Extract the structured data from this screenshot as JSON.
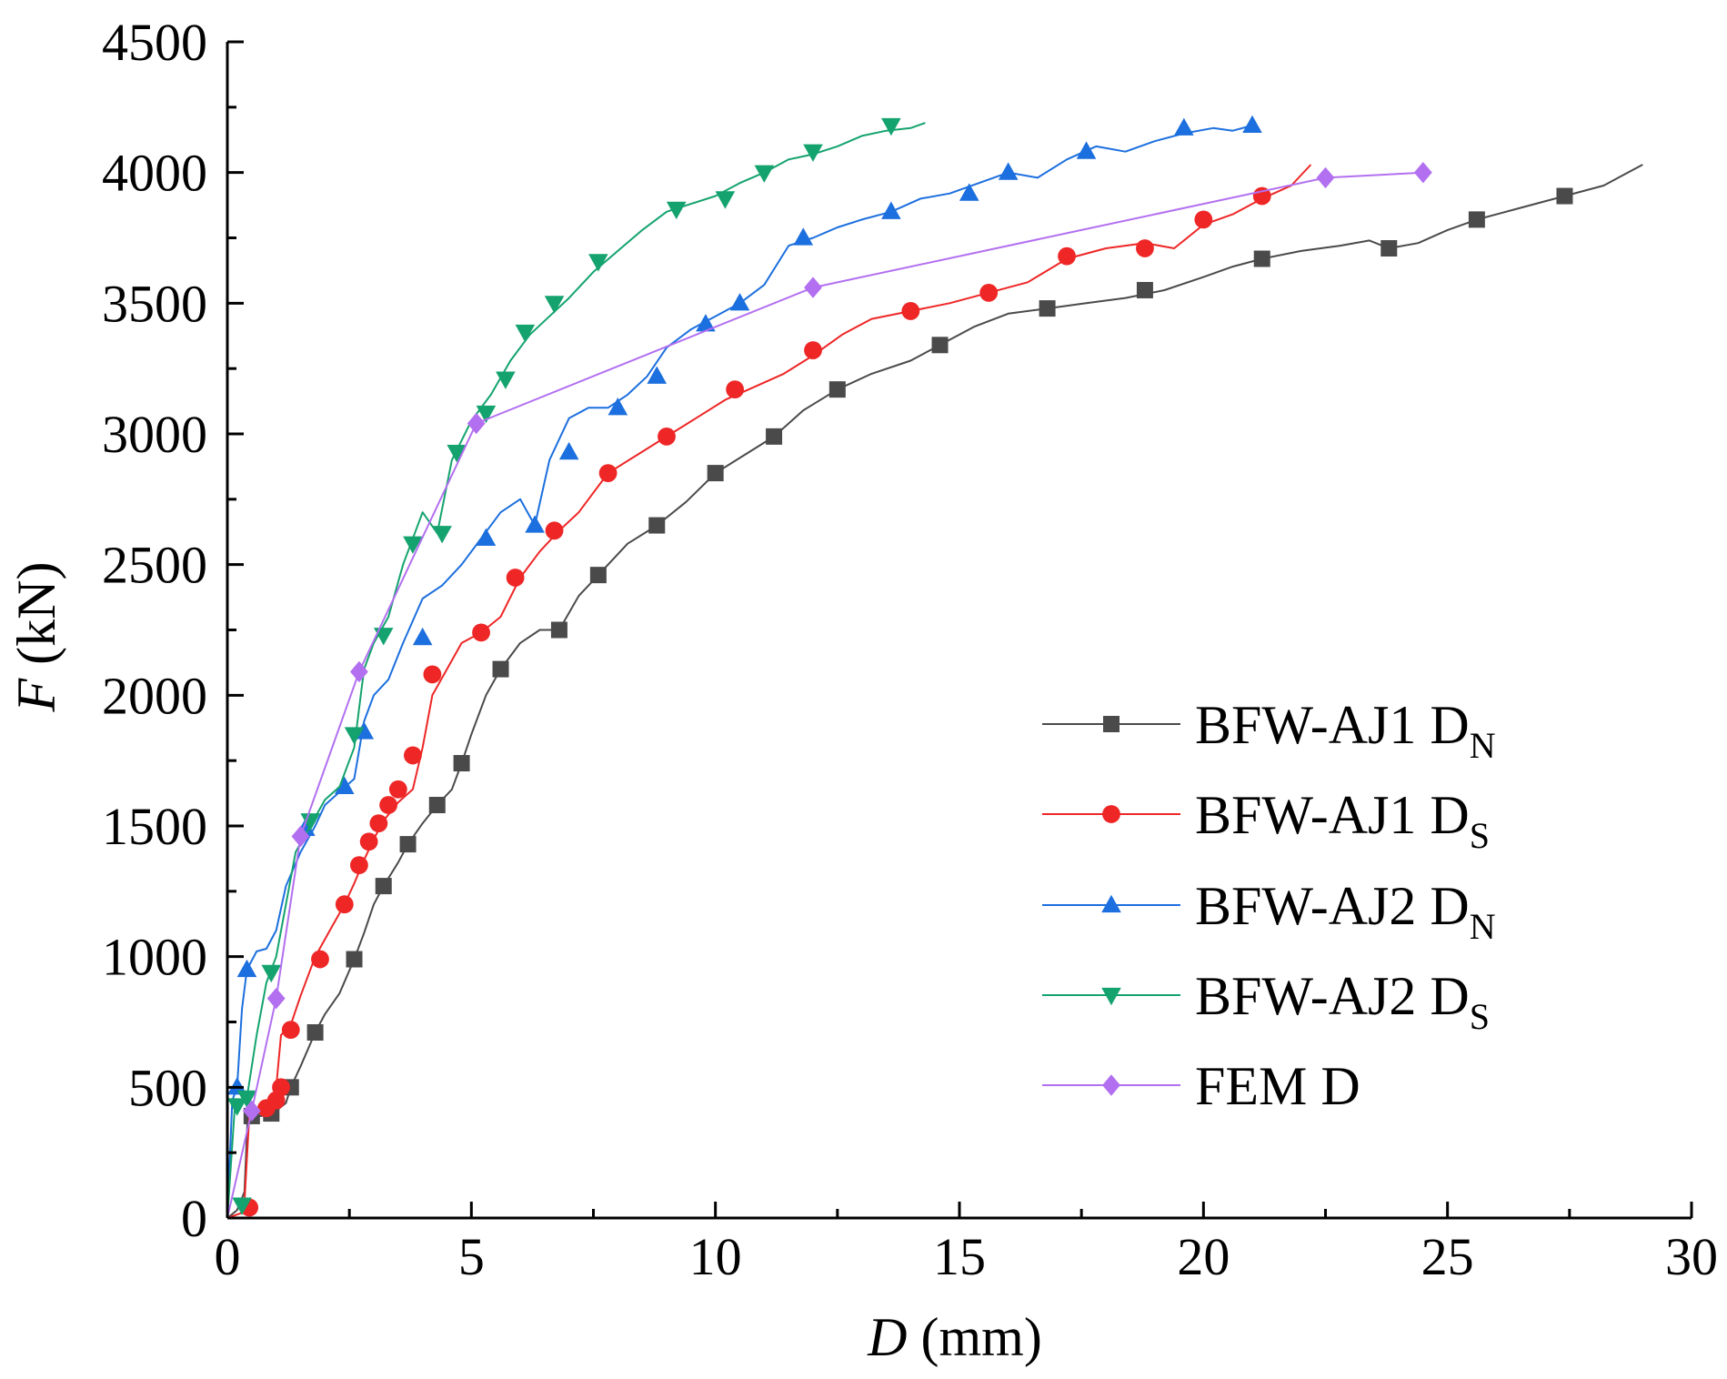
{
  "chart_data": {
    "type": "line",
    "title": "",
    "xlabel": {
      "symbol": "D",
      "unit": " (mm)"
    },
    "ylabel": {
      "symbol": "F",
      "unit": " (kN)"
    },
    "xlim": [
      0,
      30
    ],
    "ylim": [
      0,
      4500
    ],
    "xticks": [
      0,
      5,
      10,
      15,
      20,
      25,
      30
    ],
    "yticks": [
      0,
      500,
      1000,
      1500,
      2000,
      2500,
      3000,
      3500,
      4000,
      4500
    ],
    "x_tick_labels": [
      "0",
      "5",
      "10",
      "15",
      "20",
      "25",
      "30"
    ],
    "y_tick_labels": [
      "0",
      "500",
      "1000",
      "1500",
      "2000",
      "2500",
      "3000",
      "3500",
      "4000",
      "4500"
    ],
    "grid": false,
    "legend_position": "lower-right",
    "series": [
      {
        "name": "BFW-AJ1 DN",
        "label_main": "BFW-AJ1 D",
        "label_sub": "N",
        "color": "#4a4a4a",
        "marker": "square",
        "x": [
          0.0,
          0.2,
          0.35,
          0.42,
          0.5,
          0.7,
          0.9,
          1.0,
          1.2,
          1.3,
          1.5,
          1.8,
          2.0,
          2.3,
          2.6,
          2.8,
          3.0,
          3.2,
          3.5,
          3.7,
          4.0,
          4.3,
          4.6,
          4.8,
          5.0,
          5.3,
          5.6,
          6.0,
          6.4,
          6.8,
          7.2,
          7.6,
          8.2,
          8.8,
          9.4,
          10.0,
          10.6,
          11.2,
          11.8,
          12.5,
          13.2,
          14.0,
          14.6,
          15.3,
          16.0,
          16.8,
          17.6,
          18.4,
          19.2,
          20.0,
          20.6,
          21.2,
          22.0,
          22.8,
          23.4,
          23.8,
          24.4,
          25.0,
          25.6,
          26.4,
          27.4,
          28.2,
          29.0
        ],
        "y": [
          0,
          30,
          100,
          400,
          390,
          390,
          400,
          410,
          440,
          500,
          580,
          710,
          780,
          860,
          990,
          1090,
          1200,
          1270,
          1360,
          1430,
          1510,
          1580,
          1640,
          1740,
          1850,
          2000,
          2100,
          2200,
          2250,
          2250,
          2380,
          2460,
          2580,
          2650,
          2740,
          2850,
          2920,
          2990,
          3090,
          3170,
          3230,
          3280,
          3340,
          3410,
          3460,
          3480,
          3500,
          3520,
          3550,
          3600,
          3640,
          3670,
          3700,
          3720,
          3740,
          3710,
          3730,
          3780,
          3820,
          3860,
          3910,
          3950,
          4030
        ],
        "markers_x": [
          0.5,
          0.9,
          1.3,
          1.8,
          2.6,
          3.2,
          3.7,
          4.3,
          4.8,
          5.6,
          6.8,
          7.6,
          8.8,
          10.0,
          11.2,
          12.5,
          14.6,
          16.8,
          18.8,
          21.2,
          23.8,
          25.6,
          27.4
        ],
        "markers_y": [
          390,
          400,
          500,
          710,
          990,
          1270,
          1430,
          1580,
          1740,
          2100,
          2250,
          2460,
          2650,
          2850,
          2990,
          3170,
          3340,
          3480,
          3550,
          3670,
          3710,
          3820,
          3910
        ]
      },
      {
        "name": "BFW-AJ1 DS",
        "label_main": "BFW-AJ1 D",
        "label_sub": "S",
        "color": "#ee2626",
        "marker": "circle",
        "x": [
          0.0,
          0.3,
          0.35,
          0.45,
          0.6,
          0.8,
          0.9,
          1.0,
          1.1,
          1.3,
          1.5,
          1.8,
          2.1,
          2.4,
          2.6,
          2.8,
          3.0,
          3.2,
          3.5,
          3.8,
          4.0,
          4.2,
          4.5,
          4.8,
          5.2,
          5.6,
          6.0,
          6.4,
          6.8,
          7.2,
          7.8,
          8.4,
          9.0,
          9.6,
          10.2,
          10.8,
          11.4,
          12.0,
          12.6,
          13.2,
          14.0,
          14.8,
          15.6,
          16.4,
          17.2,
          18.0,
          18.8,
          19.4,
          20.0,
          20.6,
          21.2,
          21.8,
          22.2
        ],
        "y": [
          0,
          20,
          60,
          390,
          400,
          420,
          450,
          500,
          700,
          740,
          850,
          1000,
          1100,
          1200,
          1280,
          1370,
          1450,
          1520,
          1590,
          1640,
          1800,
          2000,
          2100,
          2200,
          2240,
          2300,
          2450,
          2550,
          2630,
          2700,
          2850,
          2920,
          2990,
          3060,
          3130,
          3180,
          3230,
          3300,
          3380,
          3440,
          3470,
          3500,
          3540,
          3580,
          3670,
          3710,
          3730,
          3710,
          3800,
          3840,
          3900,
          3950,
          4030
        ],
        "markers_x": [
          0.45,
          0.8,
          1.0,
          1.1,
          1.3,
          1.9,
          2.4,
          2.7,
          2.9,
          3.1,
          3.3,
          3.5,
          3.8,
          4.2,
          5.2,
          5.9,
          6.7,
          7.8,
          9.0,
          10.4,
          12.0,
          14.0,
          15.6,
          17.2,
          18.8,
          20.0,
          21.2
        ],
        "markers_y": [
          40,
          420,
          450,
          500,
          720,
          990,
          1200,
          1350,
          1440,
          1510,
          1580,
          1640,
          1770,
          2080,
          2240,
          2450,
          2630,
          2850,
          2990,
          3170,
          3320,
          3470,
          3540,
          3680,
          3710,
          3820,
          3910
        ]
      },
      {
        "name": "BFW-AJ2 DN",
        "label_main": "BFW-AJ2 D",
        "label_sub": "N",
        "color": "#1c6fde",
        "marker": "triangle-up",
        "x": [
          0.0,
          0.1,
          0.2,
          0.3,
          0.4,
          0.6,
          0.8,
          1.0,
          1.2,
          1.5,
          1.8,
          2.0,
          2.3,
          2.6,
          2.8,
          3.0,
          3.3,
          3.6,
          4.0,
          4.4,
          4.8,
          5.2,
          5.6,
          6.0,
          6.3,
          6.6,
          7.0,
          7.4,
          7.8,
          8.2,
          8.6,
          9.0,
          9.5,
          10.0,
          10.5,
          11.0,
          11.5,
          12.0,
          12.5,
          13.0,
          13.6,
          14.2,
          14.8,
          15.4,
          16.0,
          16.6,
          17.2,
          17.8,
          18.4,
          19.0,
          19.6,
          20.2,
          20.6,
          21.0
        ],
        "y": [
          0,
          450,
          500,
          800,
          950,
          1020,
          1030,
          1100,
          1270,
          1400,
          1500,
          1580,
          1630,
          1680,
          1900,
          2000,
          2060,
          2200,
          2370,
          2420,
          2500,
          2600,
          2700,
          2750,
          2650,
          2900,
          3060,
          3100,
          3100,
          3150,
          3220,
          3330,
          3400,
          3450,
          3500,
          3570,
          3720,
          3750,
          3790,
          3820,
          3850,
          3900,
          3920,
          3960,
          4000,
          3980,
          4050,
          4100,
          4080,
          4120,
          4150,
          4170,
          4160,
          4180
        ],
        "markers_x": [
          0.2,
          0.4,
          1.6,
          2.4,
          2.8,
          4.0,
          5.3,
          6.3,
          7.0,
          8.0,
          8.8,
          9.8,
          10.5,
          11.8,
          13.6,
          15.2,
          16.0,
          17.6,
          19.6,
          21.0
        ],
        "markers_y": [
          500,
          950,
          1490,
          1650,
          1860,
          2220,
          2600,
          2650,
          2930,
          3100,
          3220,
          3420,
          3500,
          3750,
          3850,
          3920,
          4000,
          4080,
          4170,
          4180
        ],
        "markers_x_note": "",
        "markers_y_note": ""
      },
      {
        "name": "BFW-AJ2 DS",
        "label_main": "BFW-AJ2 D",
        "label_sub": "S",
        "color": "#14a36e",
        "marker": "triangle-down",
        "x": [
          0.0,
          0.15,
          0.25,
          0.4,
          0.6,
          0.8,
          1.0,
          1.2,
          1.4,
          1.7,
          2.0,
          2.3,
          2.6,
          2.8,
          3.0,
          3.3,
          3.6,
          4.0,
          4.3,
          4.6,
          5.0,
          5.4,
          5.8,
          6.2,
          6.6,
          7.0,
          7.5,
          8.0,
          8.5,
          9.0,
          9.5,
          10.0,
          10.5,
          11.0,
          11.5,
          12.0,
          12.5,
          13.0,
          13.5,
          14.0,
          14.3
        ],
        "y": [
          0,
          420,
          440,
          460,
          700,
          900,
          1000,
          1200,
          1400,
          1500,
          1600,
          1650,
          1800,
          2100,
          2200,
          2300,
          2500,
          2700,
          2620,
          2900,
          3050,
          3150,
          3280,
          3380,
          3450,
          3520,
          3620,
          3700,
          3780,
          3850,
          3880,
          3910,
          3960,
          4000,
          4050,
          4070,
          4100,
          4140,
          4160,
          4170,
          4190
        ],
        "markers_x": [
          0.2,
          0.3,
          0.4,
          0.9,
          1.7,
          2.6,
          3.2,
          3.8,
          4.4,
          4.7,
          5.3,
          5.7,
          6.1,
          6.7,
          7.6,
          9.2,
          10.2,
          11.0,
          12.0,
          13.6
        ],
        "markers_y": [
          430,
          50,
          460,
          940,
          1520,
          1850,
          2230,
          2580,
          2620,
          2930,
          3080,
          3210,
          3390,
          3500,
          3660,
          3860,
          3900,
          4000,
          4080,
          4180
        ]
      },
      {
        "name": "FEM D",
        "label_main": "FEM D",
        "label_sub": "",
        "color": "#b26ff0",
        "marker": "diamond",
        "x": [
          0.0,
          0.5,
          1.0,
          1.5,
          2.7,
          5.1,
          12.0,
          22.5,
          24.5
        ],
        "y": [
          0,
          410,
          840,
          1460,
          2090,
          3040,
          3560,
          3980,
          4000
        ],
        "markers_x": [
          0.5,
          1.0,
          1.5,
          2.7,
          5.1,
          12.0,
          22.5,
          24.5
        ],
        "markers_y": [
          410,
          840,
          1460,
          2090,
          3040,
          3560,
          3980,
          4000
        ]
      }
    ]
  }
}
